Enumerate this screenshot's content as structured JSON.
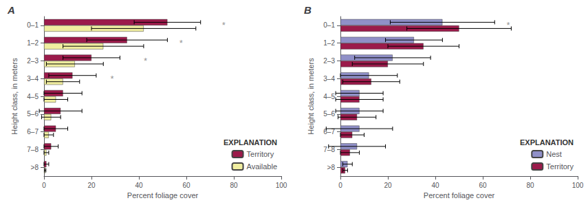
{
  "chart_data": [
    {
      "type": "bar",
      "orientation": "horizontal",
      "title": "A",
      "categories": [
        "0–1",
        "1–2",
        "2–3",
        "3–4",
        "4–5",
        "5–6",
        "6–7",
        "7–8",
        ">8"
      ],
      "series": [
        {
          "name": "Territory",
          "color": "#9b1b4b",
          "values": [
            52,
            35,
            20,
            12,
            8,
            7,
            5,
            3,
            1
          ],
          "errors": [
            14,
            17,
            12,
            10,
            8,
            9,
            5,
            3,
            1
          ]
        },
        {
          "name": "Available",
          "color": "#f0eea0",
          "values": [
            42,
            25,
            13,
            8,
            5,
            3,
            2,
            1,
            0.5
          ],
          "errors": [
            22,
            17,
            12,
            7,
            5,
            4,
            2,
            1,
            0.3
          ]
        }
      ],
      "annotations": [
        {
          "x": 75,
          "y": "0–1",
          "text": "*"
        },
        {
          "x": 57,
          "y": "1–2",
          "text": "*"
        },
        {
          "x": 42,
          "y": "2–3",
          "text": "*"
        },
        {
          "x": 28,
          "y": "3–4",
          "text": "*"
        }
      ],
      "xlabel": "Percent foliage cover",
      "ylabel": "Height class, in meters",
      "xlim": [
        0,
        100
      ],
      "xticks": [
        0,
        20,
        40,
        60,
        80,
        100
      ],
      "grid": false,
      "legend": "lower right",
      "legend_title": "EXPLANATION"
    },
    {
      "type": "bar",
      "orientation": "horizontal",
      "title": "B",
      "categories": [
        "0–1",
        "1–2",
        "2–3",
        "3–4",
        "4–5",
        "5–6",
        "6–7",
        "7–8",
        ">8"
      ],
      "series": [
        {
          "name": "Nest",
          "color": "#9090c8",
          "values": [
            43,
            31,
            22,
            12,
            8,
            8,
            8,
            7,
            3
          ],
          "errors": [
            22,
            12,
            16,
            12,
            10,
            10,
            14,
            12,
            2
          ]
        },
        {
          "name": "Territory",
          "color": "#9b1b4b",
          "values": [
            50,
            35,
            20,
            13,
            8,
            7,
            5,
            4,
            2
          ],
          "errors": [
            22,
            15,
            15,
            12,
            10,
            8,
            5,
            4,
            1
          ]
        }
      ],
      "annotations": [
        {
          "x": 70,
          "y": "0–1",
          "text": "*"
        }
      ],
      "xlabel": "Percent foliage cover",
      "ylabel": "Height class, in meters",
      "xlim": [
        0,
        100
      ],
      "xticks": [
        0,
        20,
        40,
        60,
        80,
        100
      ],
      "grid": false,
      "legend": "lower right",
      "legend_title": "EXPLANATION"
    }
  ]
}
